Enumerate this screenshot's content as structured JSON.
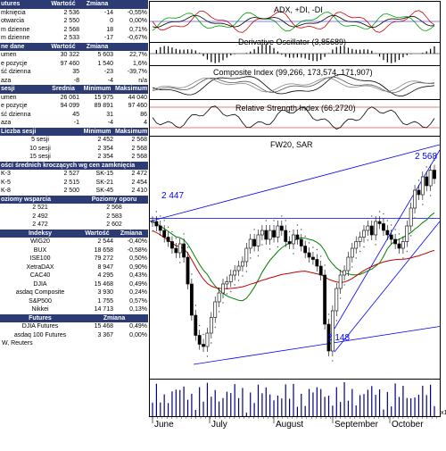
{
  "wig20_table": {
    "headers": [
      "utures",
      "Wartość",
      "Zmiana",
      ""
    ],
    "rows": [
      [
        "mknięcia",
        "2 536",
        "-14",
        "-0,55%"
      ],
      [
        "otwarcia",
        "2 550",
        "0",
        "0,00%"
      ],
      [
        "m dzienne",
        "2 568",
        "18",
        "0,71%"
      ],
      [
        "m dzienne",
        "2 533",
        "-17",
        "-0,67%"
      ]
    ]
  },
  "compare_table": {
    "headers": [
      "ne dane",
      "Wartość",
      "Zmiana",
      ""
    ],
    "rows": [
      [
        "umen",
        "30 322",
        "5 603",
        "22,7%"
      ],
      [
        "e pozycje",
        "97 460",
        "1 540",
        "1,6%"
      ],
      [
        "ść dzienna",
        "35",
        "-23",
        "-39,7%"
      ],
      [
        "aza",
        "-8",
        "-4",
        "n/a"
      ]
    ]
  },
  "session_table": {
    "headers": [
      "sesji",
      "Średnia",
      "Minimum",
      "Maksimum"
    ],
    "rows": [
      [
        "umen",
        "26 061",
        "15 975",
        "44 040"
      ],
      [
        "e pozycje",
        "94 099",
        "89 891",
        "97 460"
      ],
      [
        "ść dzienna",
        "45",
        "31",
        "86"
      ],
      [
        "aza",
        "-1",
        "-4",
        "4"
      ]
    ]
  },
  "sessions_count_table": {
    "headers": [
      "Liczba sesji",
      "Minimum",
      "Maksimum"
    ],
    "rows": [
      [
        "5 sesji",
        "2 452",
        "2 568"
      ],
      [
        "10 sesji",
        "2 354",
        "2 568"
      ],
      [
        "15 sesji",
        "2 354",
        "2 568"
      ]
    ]
  },
  "moving_avg_table": {
    "header": "ości średnich kroczących wg cen zamknięcia",
    "rows": [
      [
        "K-3",
        "2 527",
        "SK-15",
        "2 472"
      ],
      [
        "K-5",
        "2 515",
        "SK-21",
        "2 454"
      ],
      [
        "K-8",
        "2 500",
        "SK-45",
        "2 410"
      ]
    ]
  },
  "support_resistance_table": {
    "headers": [
      "oziomy wsparcia",
      "Poziomy oporu"
    ],
    "rows": [
      [
        "2 521",
        "2 568"
      ],
      [
        "2 492",
        "2 583"
      ],
      [
        "2 472",
        "2 602"
      ]
    ]
  },
  "indices_table": {
    "headers": [
      "Indeksy",
      "Wartość",
      "Zmiana"
    ],
    "rows": [
      [
        "WIG20",
        "2 544",
        "-0,40%"
      ],
      [
        "BUX",
        "18 658",
        "-0,58%"
      ],
      [
        "ISE100",
        "79 272",
        "0,50%"
      ],
      [
        "XetraDAX",
        "8 947",
        "0,90%"
      ],
      [
        "CAC40",
        "4 295",
        "0,43%"
      ],
      [
        "DJIA",
        "15 468",
        "0,49%"
      ],
      [
        "asdaq Composite",
        "3 930",
        "0,24%"
      ],
      [
        "S&P500",
        "1 755",
        "0,57%"
      ],
      [
        "Nikkei",
        "14 713",
        "0,13%"
      ]
    ]
  },
  "futures_table": {
    "headers": [
      "Futures",
      "Zmiana"
    ],
    "rows": [
      [
        "DJIA Futures",
        "15 468",
        "0,49%"
      ],
      [
        "asdaq 100 Futures",
        "3 367",
        "0,00%"
      ]
    ]
  },
  "source": "W, Reuters",
  "chart": {
    "panels": {
      "adx": "ADX, +DI, -DI",
      "deriv": "Derivative Oscillator (3,85689)",
      "composite": "Composite Index (99,266, 173,574, 171,907)",
      "rsi": "Relative Strength Index (66,2720)",
      "main": "FW20, SAR"
    },
    "annotations": {
      "high": "2 568",
      "left_level": "2 447",
      "low": "2 148"
    },
    "months": [
      "June",
      "July",
      "August",
      "September",
      "October"
    ],
    "volume_multiplier": "x1",
    "colors": {
      "header_bg": "#2d3b74",
      "line_blue": "#0000ff",
      "ma_red": "#c00000",
      "ma_green": "#008000",
      "sar": "#555555"
    }
  },
  "chart_data": {
    "type": "candlestick",
    "title": "FW20, SAR",
    "x_labels": [
      "June",
      "July",
      "August",
      "September",
      "October"
    ],
    "y_annotations": [
      2568,
      2447,
      2148
    ],
    "ylim": [
      2100,
      2600
    ],
    "close_series": [
      2440,
      2430,
      2420,
      2405,
      2395,
      2380,
      2370,
      2390,
      2360,
      2300,
      2230,
      2185,
      2165,
      2160,
      2190,
      2225,
      2260,
      2280,
      2300,
      2305,
      2320,
      2330,
      2340,
      2350,
      2380,
      2400,
      2385,
      2410,
      2420,
      2400,
      2420,
      2405,
      2430,
      2420,
      2395,
      2390,
      2410,
      2400,
      2385,
      2370,
      2360,
      2355,
      2340,
      2320,
      2210,
      2150,
      2240,
      2290,
      2320,
      2330,
      2360,
      2380,
      2395,
      2405,
      2420,
      2430,
      2410,
      2440,
      2435,
      2420,
      2410,
      2400,
      2390,
      2380,
      2395,
      2430,
      2470,
      2510,
      2500,
      2540,
      2520,
      2555,
      2536
    ]
  }
}
